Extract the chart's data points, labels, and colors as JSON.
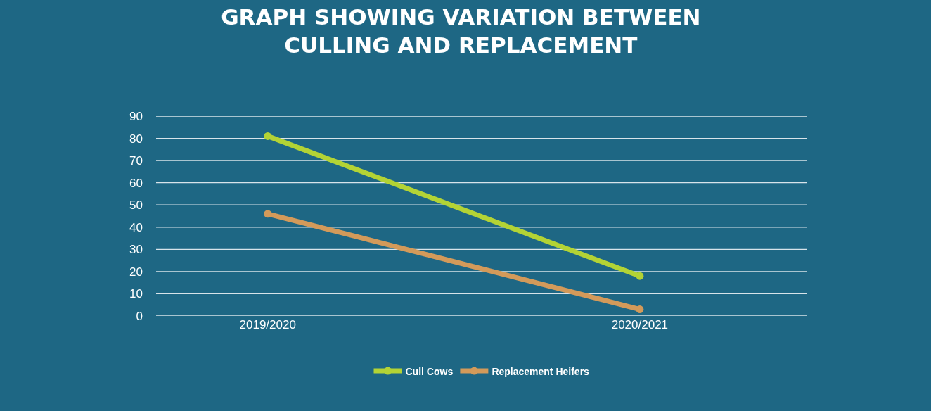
{
  "chart_data": {
    "type": "line",
    "title": "GRAPH SHOWING VARIATION BETWEEN CULLING AND REPLACEMENT",
    "categories": [
      "2019/2020",
      "2020/2021"
    ],
    "series": [
      {
        "name": "Cull Cows",
        "color": "#b3d335",
        "values": [
          81,
          18
        ]
      },
      {
        "name": "Replacement Heifers",
        "color": "#d39a5a",
        "values": [
          46,
          3
        ]
      }
    ],
    "ylim": [
      0,
      90
    ],
    "yticks": [
      0,
      10,
      20,
      30,
      40,
      50,
      60,
      70,
      80,
      90
    ],
    "grid": "y",
    "legend": "bottom",
    "marker": "circle",
    "line_style": "solid"
  }
}
